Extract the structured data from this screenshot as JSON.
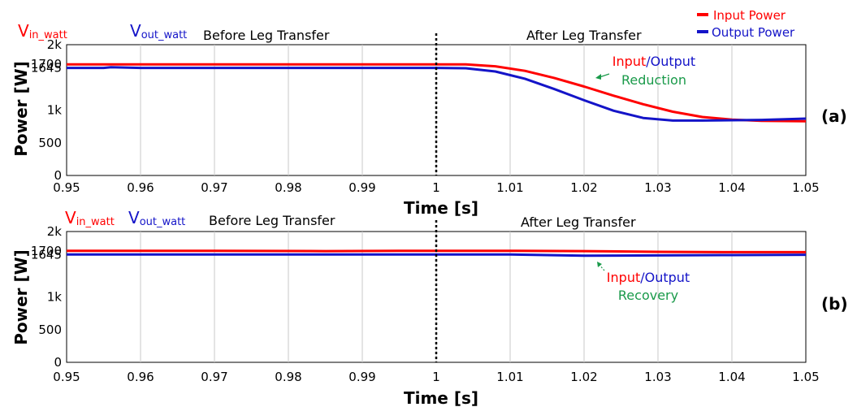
{
  "legend": {
    "input": "Input Power",
    "output": "Output Power"
  },
  "colors": {
    "input": "#ff0000",
    "output": "#1414c8",
    "annotation_input": "#ff0000",
    "annotation_output": "#1414c8",
    "annotation_green": "#1a9a4a",
    "gridline": "#c8c8c8"
  },
  "panels": [
    {
      "label": "(a)",
      "signal_in_main": "V",
      "signal_in_sub": "in_watt",
      "signal_out_main": "V",
      "signal_out_sub": "out_watt",
      "before": "Before Leg Transfer",
      "after": "After Leg Transfer",
      "ann_input": "Input",
      "ann_slash": "/",
      "ann_output": "Output",
      "ann_line2": "Reduction",
      "xlabel": "Time [s]",
      "ylabel": "Power [W]"
    },
    {
      "label": "(b)",
      "signal_in_main": "V",
      "signal_in_sub": "in_watt",
      "signal_out_main": "V",
      "signal_out_sub": "out_watt",
      "before": "Before Leg Transfer",
      "after": "After Leg Transfer",
      "ann_input": "Input",
      "ann_slash": "/",
      "ann_output": "Output",
      "ann_line2": "Recovery",
      "xlabel": "Time [s]",
      "ylabel": "Power [W]"
    }
  ],
  "chart_data": [
    {
      "type": "line",
      "xlabel": "Time [s]",
      "ylabel": "Power [W]",
      "xlim": [
        0.95,
        1.05
      ],
      "ylim": [
        0,
        2000
      ],
      "x_ticks": [
        "0.95",
        "0.96",
        "0.97",
        "0.98",
        "0.99",
        "1",
        "1.01",
        "1.02",
        "1.03",
        "1.04",
        "1.05"
      ],
      "y_ticks": [
        {
          "value": 0,
          "label": "0"
        },
        {
          "value": 500,
          "label": "500"
        },
        {
          "value": 1000,
          "label": "1k"
        },
        {
          "value": 1645,
          "label": "1645"
        },
        {
          "value": 1700,
          "label": "1700"
        },
        {
          "value": 2000,
          "label": "2k"
        }
      ],
      "transfer_time": 1.0,
      "series": [
        {
          "name": "Input Power",
          "color": "#ff0000",
          "x": [
            0.95,
            0.96,
            0.97,
            0.98,
            0.99,
            1.0,
            1.004,
            1.008,
            1.012,
            1.016,
            1.02,
            1.024,
            1.028,
            1.032,
            1.036,
            1.04,
            1.044,
            1.05
          ],
          "y": [
            1700,
            1700,
            1700,
            1700,
            1700,
            1700,
            1698,
            1670,
            1600,
            1490,
            1360,
            1220,
            1090,
            975,
            895,
            855,
            835,
            830
          ]
        },
        {
          "name": "Output Power",
          "color": "#1414c8",
          "x": [
            0.95,
            0.955,
            0.956,
            0.96,
            0.97,
            0.98,
            0.99,
            1.0,
            1.004,
            1.008,
            1.012,
            1.016,
            1.02,
            1.024,
            1.028,
            1.032,
            1.036,
            1.04,
            1.044,
            1.05
          ],
          "y": [
            1645,
            1645,
            1655,
            1645,
            1645,
            1645,
            1645,
            1645,
            1640,
            1590,
            1480,
            1320,
            1150,
            990,
            880,
            840,
            840,
            845,
            850,
            870
          ]
        }
      ]
    },
    {
      "type": "line",
      "xlabel": "Time [s]",
      "ylabel": "Power [W]",
      "xlim": [
        0.95,
        1.05
      ],
      "ylim": [
        0,
        2000
      ],
      "x_ticks": [
        "0.95",
        "0.96",
        "0.97",
        "0.98",
        "0.99",
        "1",
        "1.01",
        "1.02",
        "1.03",
        "1.04",
        "1.05"
      ],
      "y_ticks": [
        {
          "value": 0,
          "label": "0"
        },
        {
          "value": 500,
          "label": "500"
        },
        {
          "value": 1000,
          "label": "1k"
        },
        {
          "value": 1645,
          "label": "1645"
        },
        {
          "value": 1700,
          "label": "1700"
        },
        {
          "value": 2000,
          "label": "2k"
        }
      ],
      "transfer_time": 1.0,
      "series": [
        {
          "name": "Input Power",
          "color": "#ff0000",
          "x": [
            0.95,
            0.97,
            0.985,
            0.995,
            1.0,
            1.01,
            1.02,
            1.03,
            1.04,
            1.05
          ],
          "y": [
            1705,
            1705,
            1700,
            1705,
            1705,
            1705,
            1700,
            1690,
            1685,
            1685
          ]
        },
        {
          "name": "Output Power",
          "color": "#1414c8",
          "x": [
            0.95,
            0.97,
            0.99,
            1.0,
            1.01,
            1.015,
            1.02,
            1.03,
            1.04,
            1.05
          ],
          "y": [
            1648,
            1648,
            1648,
            1648,
            1648,
            1640,
            1630,
            1635,
            1640,
            1645
          ]
        }
      ]
    }
  ]
}
